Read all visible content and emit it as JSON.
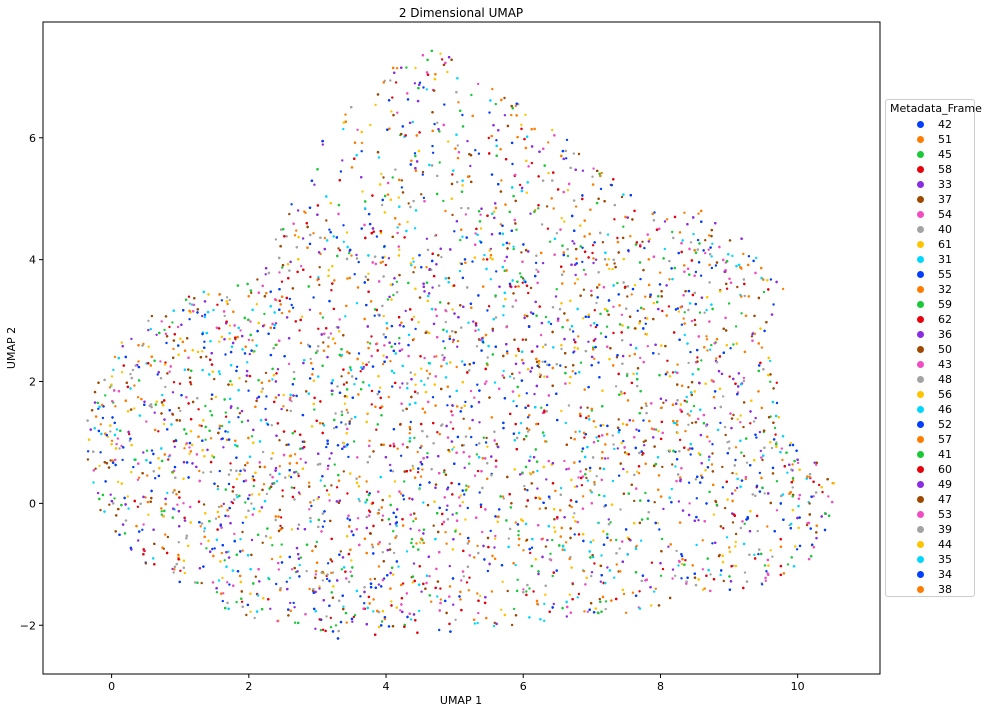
{
  "chart_data": {
    "type": "scatter",
    "title": "2 Dimensional UMAP",
    "xlabel": "UMAP 1",
    "ylabel": "UMAP 2",
    "xlim": [
      -1,
      11.2
    ],
    "ylim": [
      -2.8,
      7.9
    ],
    "x_ticks": [
      0,
      2,
      4,
      6,
      8,
      10
    ],
    "y_ticks": [
      -2,
      0,
      2,
      4,
      6
    ],
    "x_tick_labels": [
      "0",
      "2",
      "4",
      "6",
      "8",
      "10"
    ],
    "y_tick_labels": [
      "−2",
      "0",
      "2",
      "4",
      "6"
    ],
    "grid": false,
    "legend_title": "Metadata_Frame",
    "legend_placement": "right",
    "series": [
      {
        "name": "42",
        "color": "#023eff"
      },
      {
        "name": "51",
        "color": "#ff7c00"
      },
      {
        "name": "45",
        "color": "#1ac938"
      },
      {
        "name": "58",
        "color": "#e8000b"
      },
      {
        "name": "33",
        "color": "#8b2be2"
      },
      {
        "name": "37",
        "color": "#9f4800"
      },
      {
        "name": "54",
        "color": "#f14cc1"
      },
      {
        "name": "40",
        "color": "#a3a3a3"
      },
      {
        "name": "61",
        "color": "#ffc400"
      },
      {
        "name": "31",
        "color": "#00d7ff"
      },
      {
        "name": "55",
        "color": "#023eff"
      },
      {
        "name": "32",
        "color": "#ff7c00"
      },
      {
        "name": "59",
        "color": "#1ac938"
      },
      {
        "name": "62",
        "color": "#e8000b"
      },
      {
        "name": "36",
        "color": "#8b2be2"
      },
      {
        "name": "50",
        "color": "#9f4800"
      },
      {
        "name": "43",
        "color": "#f14cc1"
      },
      {
        "name": "48",
        "color": "#a3a3a3"
      },
      {
        "name": "56",
        "color": "#ffc400"
      },
      {
        "name": "46",
        "color": "#00d7ff"
      },
      {
        "name": "52",
        "color": "#023eff"
      },
      {
        "name": "57",
        "color": "#ff7c00"
      },
      {
        "name": "41",
        "color": "#1ac938"
      },
      {
        "name": "60",
        "color": "#e8000b"
      },
      {
        "name": "49",
        "color": "#8b2be2"
      },
      {
        "name": "47",
        "color": "#9f4800"
      },
      {
        "name": "53",
        "color": "#f14cc1"
      },
      {
        "name": "39",
        "color": "#a3a3a3"
      },
      {
        "name": "44",
        "color": "#ffc400"
      },
      {
        "name": "35",
        "color": "#00d7ff"
      },
      {
        "name": "34",
        "color": "#023eff"
      },
      {
        "name": "38",
        "color": "#ff7c00"
      }
    ],
    "cloud_outline": [
      [
        -0.35,
        1.4
      ],
      [
        -0.1,
        2.4
      ],
      [
        0.6,
        3.1
      ],
      [
        1.3,
        3.5
      ],
      [
        2.2,
        3.7
      ],
      [
        2.6,
        5.0
      ],
      [
        3.2,
        6.2
      ],
      [
        4.0,
        7.2
      ],
      [
        4.7,
        7.45
      ],
      [
        5.2,
        7.25
      ],
      [
        5.8,
        6.8
      ],
      [
        6.3,
        6.3
      ],
      [
        6.8,
        5.9
      ],
      [
        7.4,
        5.3
      ],
      [
        7.9,
        4.8
      ],
      [
        8.6,
        4.8
      ],
      [
        9.3,
        4.3
      ],
      [
        9.8,
        3.5
      ],
      [
        9.6,
        2.7
      ],
      [
        9.85,
        1.2
      ],
      [
        10.25,
        0.7
      ],
      [
        10.6,
        0.3
      ],
      [
        10.3,
        -0.8
      ],
      [
        9.6,
        -1.4
      ],
      [
        8.6,
        -1.5
      ],
      [
        7.6,
        -1.8
      ],
      [
        6.3,
        -1.95
      ],
      [
        4.6,
        -2.15
      ],
      [
        3.4,
        -2.25
      ],
      [
        2.2,
        -1.95
      ],
      [
        1.1,
        -1.5
      ],
      [
        0.4,
        -0.9
      ],
      [
        -0.15,
        -0.2
      ],
      [
        -0.4,
        0.7
      ]
    ]
  }
}
